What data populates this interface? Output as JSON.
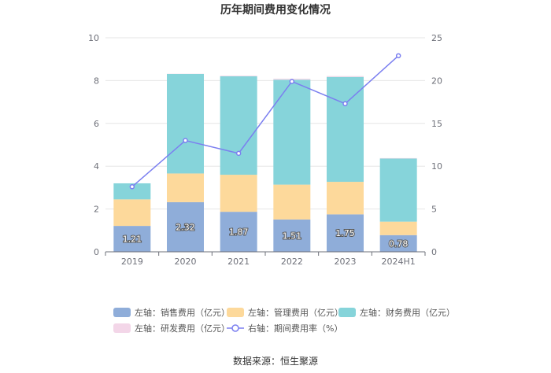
{
  "chart_data": {
    "type": "bar",
    "title": "历年期间费用变化情况",
    "categories": [
      "2019",
      "2020",
      "2021",
      "2022",
      "2023",
      "2024H1"
    ],
    "stacked": true,
    "left_axis": {
      "min": 0,
      "max": 10,
      "ticks": [
        "0",
        "2",
        "4",
        "6",
        "8",
        "10"
      ]
    },
    "right_axis": {
      "min": 0,
      "max": 25,
      "ticks": [
        "0",
        "5",
        "10",
        "15",
        "20",
        "25"
      ]
    },
    "series": [
      {
        "name": "左轴：销售费用（亿元）",
        "axis": "left",
        "color": "#8fadd9",
        "values": [
          1.21,
          2.32,
          1.87,
          1.51,
          1.75,
          0.78
        ],
        "labels": [
          "1.21",
          "2.32",
          "1.87",
          "1.51",
          "1.75",
          "0.78"
        ]
      },
      {
        "name": "左轴：管理费用（亿元）",
        "axis": "left",
        "color": "#fdd99b",
        "values": [
          1.24,
          1.34,
          1.73,
          1.63,
          1.52,
          0.63
        ]
      },
      {
        "name": "左轴：财务费用（亿元）",
        "axis": "left",
        "color": "#86d4da",
        "values": [
          0.75,
          4.65,
          4.6,
          4.9,
          4.9,
          2.95
        ]
      },
      {
        "name": "左轴：研发费用（亿元）",
        "axis": "left",
        "color": "#f3d6e8",
        "values": [
          0.0,
          0.01,
          0.03,
          0.05,
          0.04,
          0.02
        ]
      },
      {
        "name": "右轴：期间费用率（%）",
        "axis": "right",
        "type": "line",
        "color": "#7b7ff0",
        "values": [
          7.6,
          13.0,
          11.5,
          19.9,
          17.3,
          22.9
        ]
      }
    ],
    "legend_position": "bottom",
    "source": "数据来源：恒生聚源"
  }
}
